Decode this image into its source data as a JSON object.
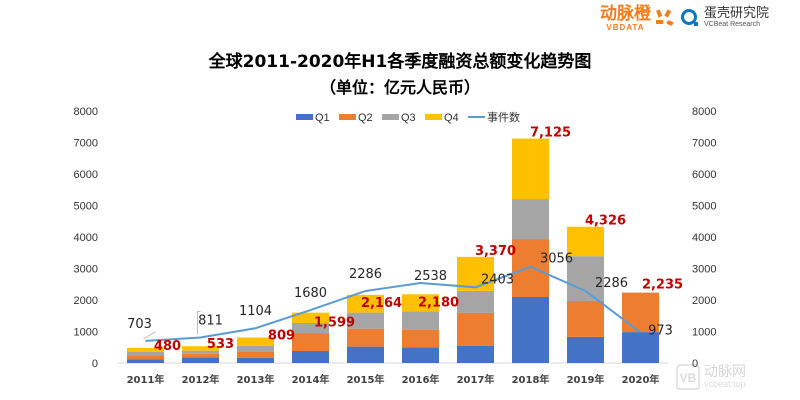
{
  "logos": {
    "brand1_cn": "动脉橙",
    "brand1_en": "VBDATA",
    "brand2_cn": "蛋壳研究院",
    "brand2_en": "VCBeat Research",
    "watermark_cn": "动脉网",
    "watermark_en": "vcbeat.top"
  },
  "chart_data": {
    "type": "bar",
    "stacked": true,
    "title": "全球2011-2020年H1各季度融资总额变化趋势图",
    "subtitle": "（单位：亿元人民币）",
    "categories": [
      "2011年",
      "2012年",
      "2013年",
      "2014年",
      "2015年",
      "2016年",
      "2017年",
      "2018年",
      "2019年",
      "2020年"
    ],
    "series": [
      {
        "name": "Q1",
        "color": "#4472c4",
        "values": [
          120,
          180,
          160,
          380,
          520,
          500,
          550,
          2095,
          830,
          980
        ]
      },
      {
        "name": "Q2",
        "color": "#ed7d31",
        "values": [
          130,
          110,
          190,
          570,
          570,
          560,
          1040,
          1840,
          1140,
          1255
        ]
      },
      {
        "name": "Q3",
        "color": "#a5a5a5",
        "values": [
          110,
          100,
          200,
          320,
          510,
          580,
          700,
          1270,
          1420,
          0
        ]
      },
      {
        "name": "Q4",
        "color": "#ffc000",
        "values": [
          120,
          143,
          259,
          329,
          564,
          540,
          1080,
          1920,
          936,
          0
        ]
      }
    ],
    "totals": [
      480,
      533,
      809,
      1599,
      2164,
      2180,
      3370,
      7125,
      4326,
      2235
    ],
    "total_labels": [
      "480",
      "533",
      "809",
      "1,599",
      "2,164",
      "2,180",
      "3,370",
      "7,125",
      "4,326",
      "2,235"
    ],
    "line": {
      "name": "事件数",
      "color": "#5b9bd5",
      "values": [
        703,
        811,
        1104,
        1680,
        2286,
        2538,
        2403,
        3056,
        2286,
        973
      ],
      "labels": [
        "703",
        "811",
        "1104",
        "1680",
        "2286",
        "2538",
        "2403",
        "3056",
        "2286",
        "973"
      ]
    },
    "ylim": [
      0,
      8000
    ],
    "y2lim": [
      0,
      8000
    ],
    "yticks": [
      "0",
      "1000",
      "2000",
      "3000",
      "4000",
      "5000",
      "6000",
      "7000",
      "8000"
    ],
    "y2ticks": [
      "0",
      "1000",
      "2000",
      "3000",
      "4000",
      "5000",
      "6000",
      "7000",
      "8000"
    ],
    "legend_position": "top",
    "legend": [
      "Q1",
      "Q2",
      "Q3",
      "Q4",
      "事件数"
    ],
    "total_label_color": "#c00000",
    "grid": false
  }
}
